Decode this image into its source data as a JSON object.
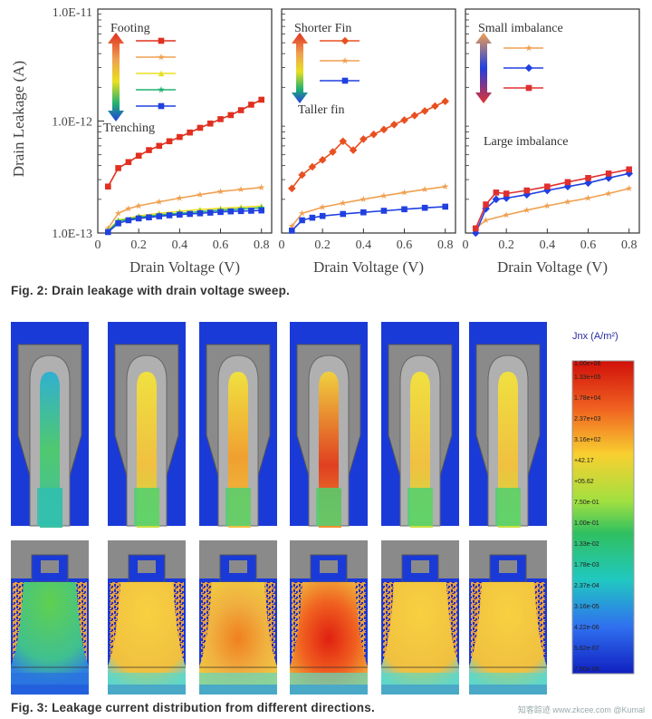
{
  "fig2": {
    "caption": "Fig. 2: Drain leakage with drain voltage sweep.",
    "y_axis_label": "Drain Leakage (A)",
    "x_axis_label": "Drain Voltage (V)"
  },
  "fig3": {
    "caption": "Fig. 3: Leakage current distribution from different directions.",
    "colorbar": {
      "title": "Jnx (A/m²)",
      "ticks": [
        "1.00e+06",
        "1.33e+05",
        "1.78e+04",
        "2.37e+03",
        "3.16e+02",
        "+42.17",
        "+05.62",
        "7.50e-01",
        "1.00e-01",
        "1.33e-02",
        "1.78e-03",
        "2.37e-04",
        "3.16e-05",
        "4.22e-06",
        "5.62e-07",
        "7.50e-08"
      ]
    }
  },
  "watermark": "知客踪迹  www.zkcee.com  @Kumal",
  "chart_data": [
    {
      "type": "line",
      "yscale": "log",
      "ylim": [
        1e-13,
        1e-11
      ],
      "xlim": [
        0,
        0.85
      ],
      "y_ticks": [
        "1.0E-11",
        "1.0E-12",
        "1.0E-13"
      ],
      "x_ticks": [
        "0",
        "0.2",
        "0.4",
        "0.6",
        "0.8"
      ],
      "xlabel": "Drain Voltage (V)",
      "ylabel": "Drain Leakage (A)",
      "legend_top": "Footing",
      "legend_bottom": "Trenching",
      "series": [
        {
          "color": "#e03020",
          "marker": "square",
          "x": [
            0.05,
            0.1,
            0.15,
            0.2,
            0.25,
            0.3,
            0.35,
            0.4,
            0.45,
            0.5,
            0.55,
            0.6,
            0.65,
            0.7,
            0.75,
            0.8
          ],
          "y": [
            2.6e-13,
            3.8e-13,
            4.3e-13,
            4.9e-13,
            5.5e-13,
            6e-13,
            6.6e-13,
            7.2e-13,
            7.9e-13,
            8.7e-13,
            9.5e-13,
            1.04e-12,
            1.13e-12,
            1.25e-12,
            1.4e-12,
            1.55e-12
          ]
        },
        {
          "color": "#f0a050",
          "marker": "star",
          "x": [
            0.05,
            0.1,
            0.15,
            0.2,
            0.3,
            0.4,
            0.5,
            0.6,
            0.7,
            0.8
          ],
          "y": [
            1.1e-13,
            1.5e-13,
            1.65e-13,
            1.75e-13,
            1.9e-13,
            2.05e-13,
            2.2e-13,
            2.35e-13,
            2.45e-13,
            2.55e-13
          ]
        },
        {
          "color": "#e8e020",
          "marker": "triangle",
          "x": [
            0.05,
            0.1,
            0.2,
            0.3,
            0.4,
            0.5,
            0.6,
            0.7,
            0.8
          ],
          "y": [
            1.05e-13,
            1.3e-13,
            1.42e-13,
            1.5e-13,
            1.56e-13,
            1.62e-13,
            1.66e-13,
            1.7e-13,
            1.74e-13
          ]
        },
        {
          "color": "#20b070",
          "marker": "star",
          "x": [
            0.05,
            0.1,
            0.2,
            0.3,
            0.4,
            0.5,
            0.6,
            0.7,
            0.8
          ],
          "y": [
            1.04e-13,
            1.28e-13,
            1.38e-13,
            1.45e-13,
            1.5e-13,
            1.55e-13,
            1.6e-13,
            1.64e-13,
            1.68e-13
          ]
        },
        {
          "color": "#2040e0",
          "marker": "square",
          "x": [
            0.05,
            0.1,
            0.15,
            0.2,
            0.25,
            0.3,
            0.35,
            0.4,
            0.45,
            0.5,
            0.55,
            0.6,
            0.65,
            0.7,
            0.75,
            0.8
          ],
          "y": [
            1.02e-13,
            1.22e-13,
            1.3e-13,
            1.35e-13,
            1.38e-13,
            1.41e-13,
            1.44e-13,
            1.46e-13,
            1.48e-13,
            1.5e-13,
            1.52e-13,
            1.54e-13,
            1.56e-13,
            1.57e-13,
            1.58e-13,
            1.59e-13
          ]
        }
      ]
    },
    {
      "type": "line",
      "yscale": "log",
      "ylim": [
        1e-13,
        1e-11
      ],
      "xlim": [
        0,
        0.85
      ],
      "x_ticks": [
        "0",
        "0.2",
        "0.4",
        "0.6",
        "0.8"
      ],
      "xlabel": "Drain Voltage (V)",
      "legend_top": "Shorter Fin",
      "legend_bottom": "Taller fin",
      "series": [
        {
          "color": "#e85020",
          "marker": "diamond",
          "x": [
            0.05,
            0.1,
            0.15,
            0.2,
            0.25,
            0.3,
            0.35,
            0.4,
            0.45,
            0.5,
            0.55,
            0.6,
            0.65,
            0.7,
            0.75,
            0.8
          ],
          "y": [
            2.5e-13,
            3.3e-13,
            3.9e-13,
            4.5e-13,
            5.3e-13,
            6.6e-13,
            5.5e-13,
            6.9e-13,
            7.6e-13,
            8.4e-13,
            9.3e-13,
            1.02e-12,
            1.12e-12,
            1.23e-12,
            1.36e-12,
            1.5e-12
          ]
        },
        {
          "color": "#f0a050",
          "marker": "star",
          "x": [
            0.05,
            0.1,
            0.2,
            0.3,
            0.4,
            0.5,
            0.6,
            0.7,
            0.8
          ],
          "y": [
            1.15e-13,
            1.5e-13,
            1.7e-13,
            1.85e-13,
            2e-13,
            2.15e-13,
            2.3e-13,
            2.45e-13,
            2.6e-13
          ]
        },
        {
          "color": "#2040e0",
          "marker": "square",
          "x": [
            0.05,
            0.1,
            0.15,
            0.2,
            0.3,
            0.4,
            0.5,
            0.6,
            0.7,
            0.8
          ],
          "y": [
            1.05e-13,
            1.3e-13,
            1.37e-13,
            1.42e-13,
            1.48e-13,
            1.53e-13,
            1.58e-13,
            1.63e-13,
            1.68e-13,
            1.72e-13
          ]
        }
      ]
    },
    {
      "type": "line",
      "yscale": "log",
      "ylim": [
        1e-13,
        1e-11
      ],
      "xlim": [
        0,
        0.85
      ],
      "x_ticks": [
        "0",
        "0.2",
        "0.4",
        "0.6",
        "0.8"
      ],
      "xlabel": "Drain Voltage (V)",
      "legend_top": "Small imbalance",
      "legend_bottom": "Large imbalance",
      "series": [
        {
          "color": "#f0a050",
          "marker": "star",
          "x": [
            0.05,
            0.1,
            0.2,
            0.3,
            0.4,
            0.5,
            0.6,
            0.7,
            0.8
          ],
          "y": [
            1.1e-13,
            1.3e-13,
            1.45e-13,
            1.6e-13,
            1.75e-13,
            1.9e-13,
            2.05e-13,
            2.25e-13,
            2.5e-13
          ]
        },
        {
          "color": "#2040e0",
          "marker": "diamond",
          "x": [
            0.05,
            0.1,
            0.15,
            0.2,
            0.3,
            0.4,
            0.5,
            0.6,
            0.7,
            0.8
          ],
          "y": [
            1e-13,
            1.65e-13,
            2e-13,
            2.05e-13,
            2.2e-13,
            2.4e-13,
            2.6e-13,
            2.8e-13,
            3.1e-13,
            3.4e-13
          ]
        },
        {
          "color": "#e03030",
          "marker": "square",
          "x": [
            0.05,
            0.1,
            0.15,
            0.2,
            0.3,
            0.4,
            0.5,
            0.6,
            0.7,
            0.8
          ],
          "y": [
            1.1e-13,
            1.8e-13,
            2.3e-13,
            2.25e-13,
            2.4e-13,
            2.6e-13,
            2.85e-13,
            3.1e-13,
            3.4e-13,
            3.7e-13
          ]
        }
      ]
    }
  ]
}
